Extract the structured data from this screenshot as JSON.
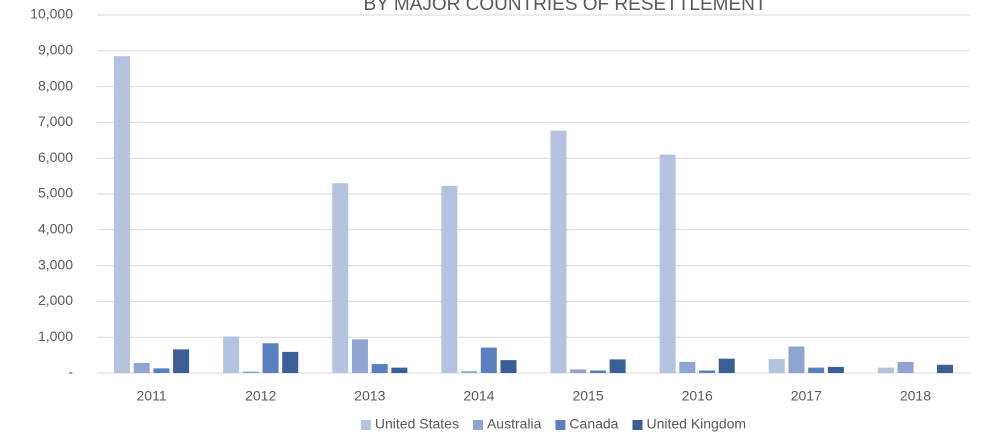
{
  "chart_data": {
    "type": "bar",
    "title": "BY MAJOR COUNTRIES OF RESETTLEMENT",
    "categories": [
      "2011",
      "2012",
      "2013",
      "2014",
      "2015",
      "2016",
      "2017",
      "2018"
    ],
    "series": [
      {
        "name": "United States",
        "color": "#b4c3e0",
        "values": [
          8850,
          1020,
          5300,
          5230,
          6770,
          6100,
          390,
          150
        ]
      },
      {
        "name": "Australia",
        "color": "#8ea5d2",
        "values": [
          280,
          40,
          940,
          50,
          100,
          310,
          740,
          310
        ]
      },
      {
        "name": "Canada",
        "color": "#5a7fbf",
        "values": [
          130,
          830,
          250,
          710,
          70,
          70,
          150,
          0
        ]
      },
      {
        "name": "United Kingdom",
        "color": "#3a5e96",
        "values": [
          660,
          590,
          150,
          360,
          380,
          400,
          170,
          230
        ]
      }
    ],
    "ylim": [
      0,
      10000
    ],
    "yticks": [
      {
        "value": 0,
        "label": "-"
      },
      {
        "value": 1000,
        "label": "1,000"
      },
      {
        "value": 2000,
        "label": "2,000"
      },
      {
        "value": 3000,
        "label": "3,000"
      },
      {
        "value": 4000,
        "label": "4,000"
      },
      {
        "value": 5000,
        "label": "5,000"
      },
      {
        "value": 6000,
        "label": "6,000"
      },
      {
        "value": 7000,
        "label": "7,000"
      },
      {
        "value": 8000,
        "label": "8,000"
      },
      {
        "value": 9000,
        "label": "9,000"
      },
      {
        "value": 10000,
        "label": "10,000"
      }
    ],
    "grid": true,
    "legend": "bottom"
  }
}
